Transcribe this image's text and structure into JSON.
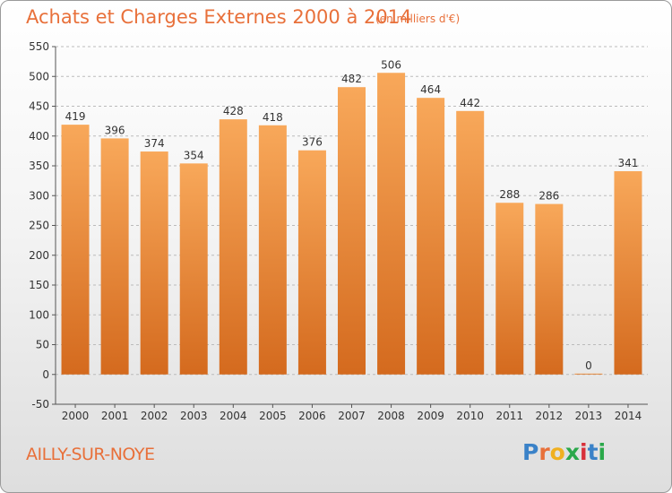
{
  "header": {
    "title": "Achats et Charges Externes 2000 à 2014",
    "unit": "(en milliers d'€)"
  },
  "footer": {
    "commune": "AILLY-SUR-NOYE",
    "logo_letters": [
      "P",
      "r",
      "o",
      "x",
      "i",
      "t",
      "i"
    ]
  },
  "colors": {
    "bar_light": "#f8a85a",
    "bar_dark": "#d46a1e",
    "title": "#e8703a",
    "grid": "#bbbbbb"
  },
  "chart_data": {
    "type": "bar",
    "title": "Achats et Charges Externes 2000 à 2014",
    "subtitle": "(en milliers d'€)",
    "categories": [
      "2000",
      "2001",
      "2002",
      "2003",
      "2004",
      "2005",
      "2006",
      "2007",
      "2008",
      "2009",
      "2010",
      "2011",
      "2012",
      "2013",
      "2014"
    ],
    "values": [
      419,
      396,
      374,
      354,
      428,
      418,
      376,
      482,
      506,
      464,
      442,
      288,
      286,
      0,
      341
    ],
    "ylim": [
      -50,
      550
    ],
    "yticks": [
      -50,
      0,
      50,
      100,
      150,
      200,
      250,
      300,
      350,
      400,
      450,
      500,
      550
    ],
    "grid": true,
    "xlabel": "",
    "ylabel": ""
  }
}
